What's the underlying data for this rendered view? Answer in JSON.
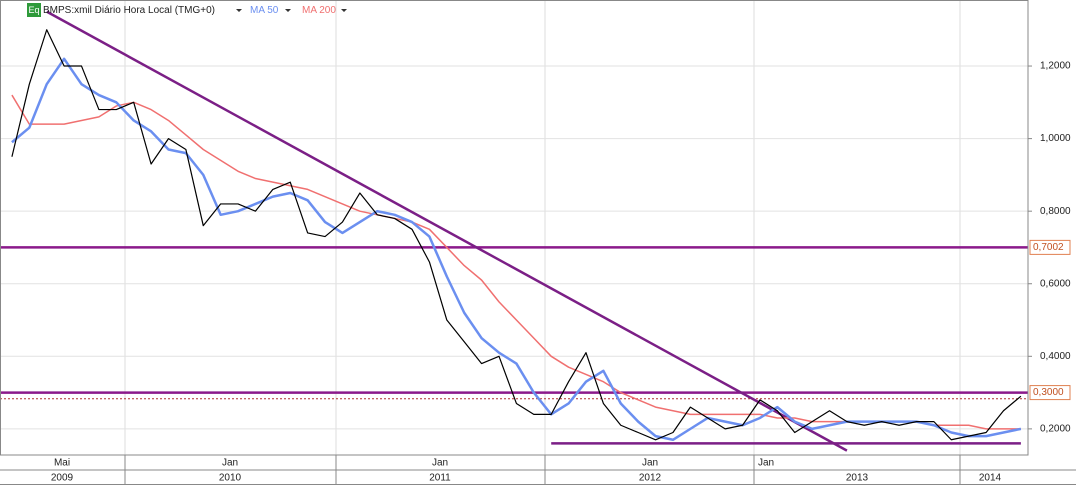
{
  "chart_data": {
    "type": "line",
    "badge": "Eq",
    "x": [
      "2009-06",
      "2009-07",
      "2009-08",
      "2009-09",
      "2009-10",
      "2009-11",
      "2009-12",
      "2010-01",
      "2010-02",
      "2010-03",
      "2010-04",
      "2010-05",
      "2010-06",
      "2010-07",
      "2010-08",
      "2010-09",
      "2010-10",
      "2010-11",
      "2010-12",
      "2011-01",
      "2011-02",
      "2011-03",
      "2011-04",
      "2011-05",
      "2011-06",
      "2011-07",
      "2011-08",
      "2011-09",
      "2011-10",
      "2011-11",
      "2011-12",
      "2012-01",
      "2012-02",
      "2012-03",
      "2012-04",
      "2012-05",
      "2012-06",
      "2012-07",
      "2012-08",
      "2012-09",
      "2012-10",
      "2012-11",
      "2012-12",
      "2013-01",
      "2013-02",
      "2013-03",
      "2013-04",
      "2013-05",
      "2013-06",
      "2013-07",
      "2013-08",
      "2013-09",
      "2013-10",
      "2013-11",
      "2013-12",
      "2014-01",
      "2014-02",
      "2014-03",
      "2014-04"
    ],
    "series": [
      {
        "name": "BMPS:xmil Diário Hora Local (TMG+0)",
        "color": "#000000",
        "width": 1.2,
        "values": [
          0.95,
          1.15,
          1.3,
          1.2,
          1.2,
          1.08,
          1.08,
          1.1,
          0.93,
          1.0,
          0.97,
          0.76,
          0.82,
          0.82,
          0.8,
          0.86,
          0.88,
          0.74,
          0.73,
          0.77,
          0.85,
          0.79,
          0.78,
          0.75,
          0.66,
          0.5,
          0.44,
          0.38,
          0.4,
          0.27,
          0.24,
          0.24,
          0.33,
          0.41,
          0.27,
          0.21,
          0.19,
          0.17,
          0.19,
          0.26,
          0.23,
          0.2,
          0.21,
          0.28,
          0.25,
          0.19,
          0.22,
          0.25,
          0.22,
          0.21,
          0.22,
          0.21,
          0.22,
          0.22,
          0.17,
          0.18,
          0.19,
          0.25,
          0.29
        ]
      },
      {
        "name": "MA 50",
        "color": "#6b8ff0",
        "width": 2.5,
        "values": [
          0.99,
          1.03,
          1.15,
          1.22,
          1.15,
          1.12,
          1.1,
          1.05,
          1.02,
          0.97,
          0.96,
          0.9,
          0.79,
          0.8,
          0.82,
          0.84,
          0.85,
          0.83,
          0.77,
          0.74,
          0.77,
          0.8,
          0.79,
          0.77,
          0.73,
          0.62,
          0.52,
          0.45,
          0.41,
          0.38,
          0.3,
          0.24,
          0.27,
          0.33,
          0.36,
          0.27,
          0.22,
          0.18,
          0.17,
          0.2,
          0.23,
          0.22,
          0.21,
          0.23,
          0.26,
          0.22,
          0.2,
          0.21,
          0.22,
          0.22,
          0.22,
          0.22,
          0.22,
          0.21,
          0.19,
          0.18,
          0.18,
          0.19,
          0.2
        ]
      },
      {
        "name": "MA 200",
        "color": "#f07070",
        "width": 1.5,
        "values": [
          1.12,
          1.04,
          1.04,
          1.04,
          1.05,
          1.06,
          1.09,
          1.1,
          1.08,
          1.05,
          1.01,
          0.97,
          0.94,
          0.91,
          0.89,
          0.88,
          0.87,
          0.86,
          0.84,
          0.82,
          0.8,
          0.79,
          0.78,
          0.77,
          0.75,
          0.7,
          0.65,
          0.61,
          0.55,
          0.5,
          0.45,
          0.4,
          0.37,
          0.35,
          0.33,
          0.3,
          0.28,
          0.26,
          0.25,
          0.24,
          0.24,
          0.24,
          0.24,
          0.24,
          0.23,
          0.23,
          0.22,
          0.22,
          0.22,
          0.22,
          0.22,
          0.22,
          0.22,
          0.21,
          0.21,
          0.21,
          0.2,
          0.2,
          0.2
        ]
      }
    ],
    "ylim": [
      0.128,
      1.382
    ],
    "yticks": [
      {
        "value": 0.2,
        "label": "0,2000"
      },
      {
        "value": 0.4,
        "label": "0,4000"
      },
      {
        "value": 0.6,
        "label": "0,6000"
      },
      {
        "value": 0.8,
        "label": "0,8000"
      },
      {
        "value": 1.0,
        "label": "1,0000"
      },
      {
        "value": 1.2,
        "label": "1,2000"
      }
    ],
    "grid": true,
    "month_labels": [
      "Mai",
      "Jan",
      "Jan",
      "Jan",
      "Jan"
    ],
    "year_labels": [
      "2009",
      "2010",
      "2011",
      "2012",
      "2013",
      "2014"
    ],
    "hlines": [
      {
        "value": 0.7002,
        "label": "0,7002",
        "color": "#8b1a8b"
      },
      {
        "value": 0.3,
        "label": "0,3000",
        "color": "#8b1a8b"
      }
    ],
    "price_line": {
      "value": 0.283,
      "color": "#b03030"
    },
    "trendlines": [
      {
        "x": [
          "2009-08",
          "2013-06"
        ],
        "y": [
          1.35,
          0.14
        ],
        "color": "#7b1f86"
      },
      {
        "x": [
          "2012-01",
          "2014-04"
        ],
        "y": [
          0.16,
          0.16
        ],
        "color": "#7b1f86"
      }
    ]
  }
}
